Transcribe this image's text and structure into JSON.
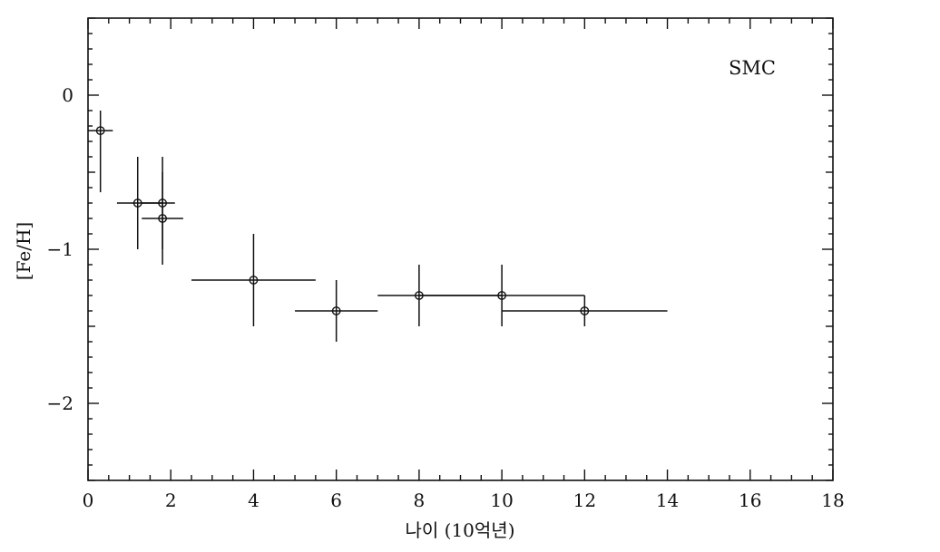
{
  "chart_data": {
    "type": "scatter",
    "title": "",
    "xlabel": "나이 (10억년)",
    "ylabel": "[Fe/H]",
    "annotation": "SMC",
    "xlim": [
      0,
      18
    ],
    "ylim": [
      -2.5,
      0.5
    ],
    "xticks": [
      0,
      2,
      4,
      6,
      8,
      10,
      12,
      14,
      16,
      18
    ],
    "yticks": [
      0,
      -1,
      -2
    ],
    "ytick_labels": [
      "0",
      "−1",
      "−2"
    ],
    "grid": false,
    "points": [
      {
        "x": 0.3,
        "y": -0.23,
        "xerr": [
          0.3,
          0.3
        ],
        "yerr": [
          0.4,
          0.13
        ]
      },
      {
        "x": 1.2,
        "y": -0.7,
        "xerr": [
          0.5,
          0.6
        ],
        "yerr": [
          0.3,
          0.3
        ]
      },
      {
        "x": 1.8,
        "y": -0.7,
        "xerr": [
          0.5,
          0.3
        ],
        "yerr": [
          0.3,
          0.3
        ]
      },
      {
        "x": 1.8,
        "y": -0.8,
        "xerr": [
          0.5,
          0.5
        ],
        "yerr": [
          0.3,
          0.3
        ]
      },
      {
        "x": 4.0,
        "y": -1.2,
        "xerr": [
          1.5,
          1.5
        ],
        "yerr": [
          0.3,
          0.3
        ]
      },
      {
        "x": 6.0,
        "y": -1.4,
        "xerr": [
          1.0,
          1.0
        ],
        "yerr": [
          0.2,
          0.2
        ]
      },
      {
        "x": 8.0,
        "y": -1.3,
        "xerr": [
          1.0,
          2.0
        ],
        "yerr": [
          0.2,
          0.2
        ]
      },
      {
        "x": 10.0,
        "y": -1.3,
        "xerr": [
          2.0,
          2.0
        ],
        "yerr": [
          0.2,
          0.2
        ]
      },
      {
        "x": 12.0,
        "y": -1.4,
        "xerr": [
          2.0,
          2.0
        ],
        "yerr": [
          0.1,
          0.1
        ]
      }
    ]
  }
}
